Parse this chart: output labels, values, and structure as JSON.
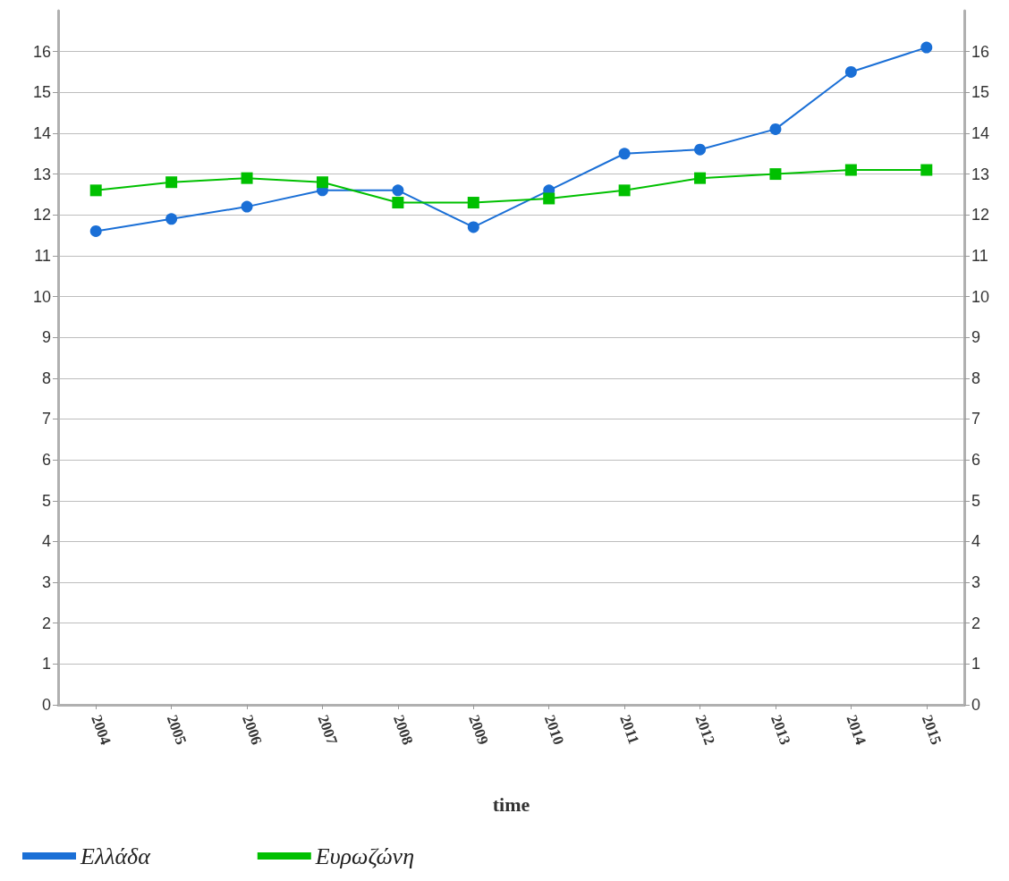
{
  "chart_data": {
    "type": "line",
    "xlabel": "time",
    "categories": [
      "2004",
      "2005",
      "2006",
      "2007",
      "2008",
      "2009",
      "2010",
      "2011",
      "2012",
      "2013",
      "2014",
      "2015"
    ],
    "series": [
      {
        "name": "Ελλάδα",
        "color": "#1a6fd6",
        "marker": "circle",
        "values": [
          11.6,
          11.9,
          12.2,
          12.6,
          12.6,
          11.7,
          12.6,
          13.5,
          13.6,
          14.1,
          15.5,
          16.1
        ]
      },
      {
        "name": "Ευρωζώνη",
        "color": "#00c000",
        "marker": "square",
        "values": [
          12.6,
          12.8,
          12.9,
          12.8,
          12.3,
          12.3,
          12.4,
          12.6,
          12.9,
          13.0,
          13.1,
          13.1
        ]
      }
    ],
    "ylim": [
      0,
      17
    ],
    "yticks": [
      0,
      1,
      2,
      3,
      4,
      5,
      6,
      7,
      8,
      9,
      10,
      11,
      12,
      13,
      14,
      15,
      16
    ],
    "y2lim": [
      0,
      17
    ],
    "y2ticks": [
      0,
      1,
      2,
      3,
      4,
      5,
      6,
      7,
      8,
      9,
      10,
      11,
      12,
      13,
      14,
      15,
      16
    ],
    "grid": "y",
    "legend": "bottom left",
    "line_style": "solid"
  }
}
